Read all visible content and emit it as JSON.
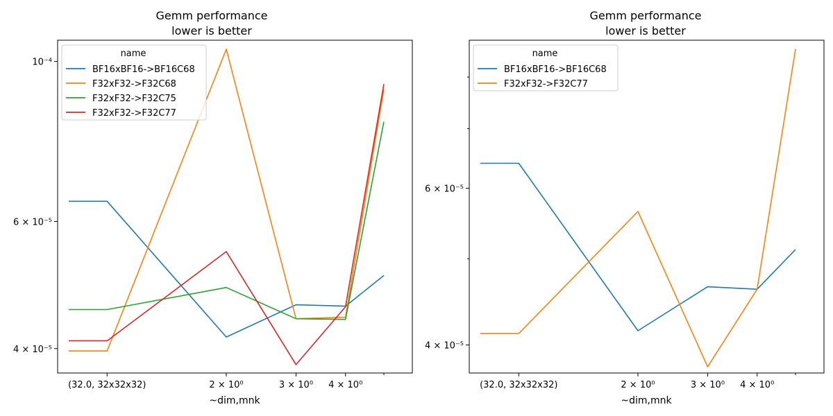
{
  "chart_data": [
    {
      "type": "line",
      "title": "Gemm performance",
      "subtitle": "lower is better",
      "xlabel": "~dim,mnk",
      "ylabel": "",
      "xscale": "log",
      "yscale": "log",
      "x": [
        0.8,
        1.0,
        2.0,
        3.0,
        4.0,
        5.0
      ],
      "xlim": [
        0.75,
        5.9
      ],
      "ylim": [
        3.7e-05,
        0.000107
      ],
      "xticks": [
        {
          "value": 1.0,
          "label": "(32.0, 32x32x32)"
        },
        {
          "value": 2.0,
          "label": "2 × 10⁰"
        },
        {
          "value": 3.0,
          "label": "3 × 10⁰"
        },
        {
          "value": 4.0,
          "label": "4 × 10⁰"
        }
      ],
      "yticks": [
        {
          "value": 4e-05,
          "label": "4 × 10⁻⁵"
        },
        {
          "value": 6e-05,
          "label": "6 × 10⁻⁵"
        },
        {
          "value": 0.0001,
          "label": "10⁻⁴"
        }
      ],
      "legend_title": "name",
      "legend_position": "top-left",
      "grid": false,
      "series": [
        {
          "name": "BF16xBF16->BF16C68",
          "color": "#1f77b4",
          "values": [
            6.4e-05,
            6.4e-05,
            4.15e-05,
            4.6e-05,
            4.58e-05,
            5.05e-05
          ]
        },
        {
          "name": "F32xF32->F32C68",
          "color": "#ff7f0e",
          "values": [
            3.97e-05,
            3.97e-05,
            0.000104,
            4.4e-05,
            4.42e-05,
            9.15e-05
          ]
        },
        {
          "name": "F32xF32->F32C75",
          "color": "#2ca02c",
          "values": [
            4.53e-05,
            4.53e-05,
            4.86e-05,
            4.4e-05,
            4.39e-05,
            8.25e-05
          ]
        },
        {
          "name": "F32xF32->F32C77",
          "color": "#d62728",
          "values": [
            4.1e-05,
            4.1e-05,
            5.45e-05,
            3.8e-05,
            4.57e-05,
            9.3e-05
          ]
        }
      ]
    },
    {
      "type": "line",
      "title": "Gemm performance",
      "subtitle": "lower is better",
      "xlabel": "~dim,mnk",
      "ylabel": "",
      "xscale": "log",
      "yscale": "log",
      "x": [
        0.8,
        1.0,
        2.0,
        3.0,
        4.0,
        5.0
      ],
      "xlim": [
        0.75,
        5.9
      ],
      "ylim": [
        3.72e-05,
        8.8e-05
      ],
      "xticks": [
        {
          "value": 1.0,
          "label": "(32.0, 32x32x32)"
        },
        {
          "value": 2.0,
          "label": "2 × 10⁰"
        },
        {
          "value": 3.0,
          "label": "3 × 10⁰"
        },
        {
          "value": 4.0,
          "label": "4 × 10⁰"
        }
      ],
      "yticks": [
        {
          "value": 4e-05,
          "label": "4 × 10⁻⁵"
        },
        {
          "value": 6e-05,
          "label": "6 × 10⁻⁵"
        }
      ],
      "minor_yticks": [
        5e-05,
        7e-05,
        8e-05
      ],
      "legend_title": "name",
      "legend_position": "top-left",
      "grid": false,
      "series": [
        {
          "name": "BF16xBF16->BF16C68",
          "color": "#1f77b4",
          "values": [
            6.4e-05,
            6.4e-05,
            4.15e-05,
            4.65e-05,
            4.62e-05,
            5.12e-05
          ]
        },
        {
          "name": "F32xF32->F32C77",
          "color": "#ff7f0e",
          "values": [
            4.12e-05,
            4.12e-05,
            5.65e-05,
            3.78e-05,
            4.62e-05,
            8.6e-05
          ]
        }
      ]
    }
  ]
}
